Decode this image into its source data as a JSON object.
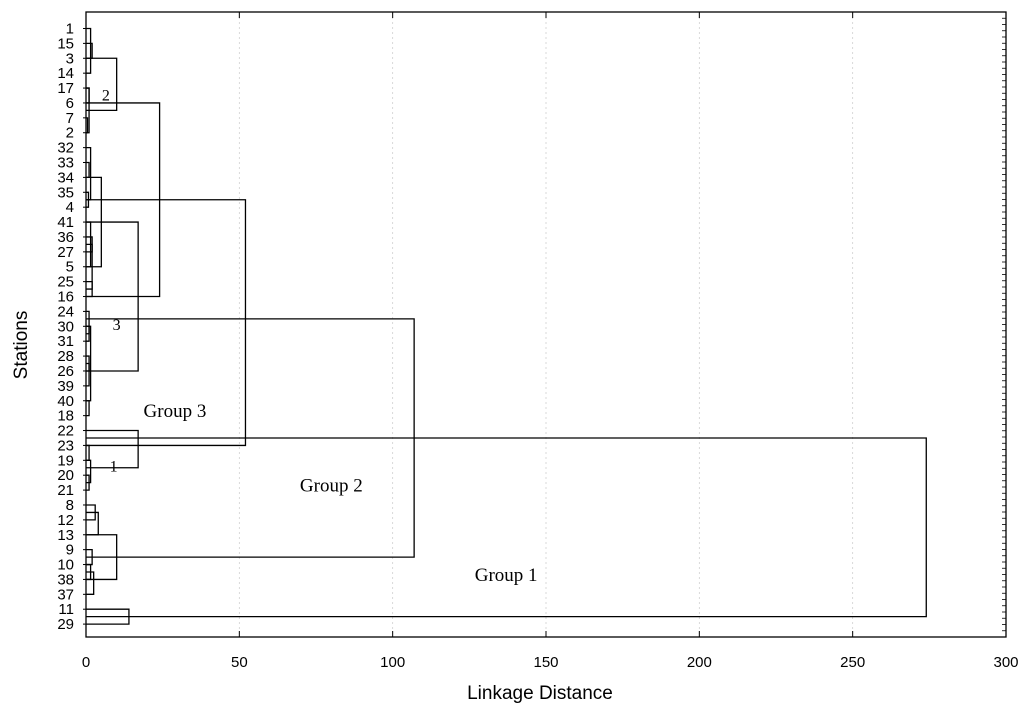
{
  "chart_data": {
    "type": "dendrogram",
    "xlabel": "Linkage Distance",
    "ylabel": "Stations",
    "xlim": [
      0,
      300
    ],
    "xticks": [
      0,
      50,
      100,
      150,
      200,
      250,
      300
    ],
    "grid": true,
    "leaves": [
      "1",
      "15",
      "3",
      "14",
      "17",
      "6",
      "7",
      "2",
      "32",
      "33",
      "34",
      "35",
      "4",
      "41",
      "36",
      "27",
      "5",
      "25",
      "16",
      "24",
      "30",
      "31",
      "28",
      "26",
      "39",
      "40",
      "18",
      "22",
      "23",
      "19",
      "20",
      "21",
      "8",
      "12",
      "13",
      "9",
      "10",
      "38",
      "37",
      "11",
      "29"
    ],
    "merges": [
      {
        "lo": 1,
        "hi": 2,
        "d": 2
      },
      {
        "lo": 0,
        "hi": 3,
        "d": 1.5
      },
      {
        "lo": 4,
        "hi": 5,
        "d": 1
      },
      {
        "lo": 6,
        "hi": 7,
        "d": 0.5
      },
      {
        "lo": 4,
        "hi": 7,
        "d": 1
      },
      {
        "lo": 2,
        "hi": 5.5,
        "d": 10
      },
      {
        "lo": 9,
        "hi": 10,
        "d": 1
      },
      {
        "lo": 11,
        "hi": 12,
        "d": 0.8
      },
      {
        "lo": 8,
        "hi": 11.5,
        "d": 1.5
      },
      {
        "lo": 14,
        "hi": 15,
        "d": 2
      },
      {
        "lo": 13,
        "hi": 16,
        "d": 1.5
      },
      {
        "lo": 17,
        "hi": 18,
        "d": 2
      },
      {
        "lo": 14.5,
        "hi": 17.5,
        "d": 2
      },
      {
        "lo": 10,
        "hi": 16,
        "d": 5
      },
      {
        "lo": 20,
        "hi": 21,
        "d": 1
      },
      {
        "lo": 19,
        "hi": 20.5,
        "d": 1
      },
      {
        "lo": 22,
        "hi": 23,
        "d": 1
      },
      {
        "lo": 22.5,
        "hi": 24,
        "d": 1
      },
      {
        "lo": 25,
        "hi": 26,
        "d": 1
      },
      {
        "lo": 20,
        "hi": 25,
        "d": 1.5
      },
      {
        "lo": 13,
        "hi": 23,
        "d": 17
      },
      {
        "lo": 5,
        "hi": 18,
        "d": 24
      },
      {
        "lo": 28,
        "hi": 29,
        "d": 1
      },
      {
        "lo": 30,
        "hi": 31,
        "d": 1
      },
      {
        "lo": 29,
        "hi": 30.5,
        "d": 1.5
      },
      {
        "lo": 27,
        "hi": 29.5,
        "d": 17
      },
      {
        "lo": 11.5,
        "hi": 28,
        "d": 52
      },
      {
        "lo": 32,
        "hi": 33,
        "d": 3
      },
      {
        "lo": 32.5,
        "hi": 34,
        "d": 4
      },
      {
        "lo": 35,
        "hi": 36,
        "d": 2
      },
      {
        "lo": 36,
        "hi": 37,
        "d": 1.5
      },
      {
        "lo": 36.5,
        "hi": 38,
        "d": 2.5
      },
      {
        "lo": 34,
        "hi": 37,
        "d": 10
      },
      {
        "lo": 19.5,
        "hi": 35.5,
        "d": 107
      },
      {
        "lo": 39,
        "hi": 40,
        "d": 14
      },
      {
        "lo": 27.5,
        "hi": 39.5,
        "d": 274
      }
    ],
    "annotations": [
      {
        "text": "2",
        "x": 6.5,
        "leaf": 4.6
      },
      {
        "text": "3",
        "x": 10,
        "leaf": 20
      },
      {
        "text": "1",
        "x": 9,
        "leaf": 29.5
      },
      {
        "text": "Group 3",
        "x": 29,
        "leaf": 25.8
      },
      {
        "text": "Group 2",
        "x": 80,
        "leaf": 30.8
      },
      {
        "text": "Group 1",
        "x": 137,
        "leaf": 36.8
      }
    ]
  }
}
